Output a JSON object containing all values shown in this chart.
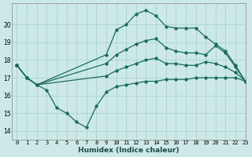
{
  "xlabel": "Humidex (Indice chaleur)",
  "xlim": [
    -0.5,
    23
  ],
  "ylim": [
    13.5,
    21.2
  ],
  "yticks": [
    14,
    15,
    16,
    17,
    18,
    19,
    20
  ],
  "xticks": [
    0,
    1,
    2,
    3,
    4,
    5,
    6,
    7,
    8,
    9,
    10,
    11,
    12,
    13,
    14,
    15,
    16,
    17,
    18,
    19,
    20,
    21,
    22,
    23
  ],
  "bg_color": "#cce9e7",
  "line_color": "#1a6b60",
  "grid_color": "#a8d5d0",
  "series1_x": [
    0,
    1,
    2,
    3,
    4,
    5,
    6,
    7,
    8,
    9,
    10,
    11,
    12,
    13,
    14,
    15,
    16,
    17,
    18,
    19,
    20,
    21,
    22,
    23
  ],
  "series1_y": [
    17.7,
    17.0,
    16.6,
    16.3,
    15.3,
    15.0,
    14.5,
    14.2,
    15.4,
    16.2,
    16.5,
    16.6,
    16.7,
    16.8,
    16.8,
    16.9,
    16.9,
    16.9,
    17.0,
    17.0,
    17.0,
    17.0,
    17.0,
    16.8
  ],
  "series2_x": [
    0,
    1,
    2,
    9,
    10,
    11,
    12,
    13,
    14,
    15,
    16,
    17,
    18,
    19,
    20,
    21,
    22,
    23
  ],
  "series2_y": [
    17.7,
    17.0,
    16.6,
    18.3,
    19.7,
    20.0,
    20.6,
    20.8,
    20.5,
    19.9,
    19.8,
    19.8,
    19.8,
    19.3,
    18.9,
    18.5,
    17.7,
    16.8
  ],
  "series3_x": [
    0,
    1,
    2,
    9,
    10,
    11,
    12,
    13,
    14,
    15,
    16,
    17,
    18,
    19,
    20,
    21,
    22,
    23
  ],
  "series3_y": [
    17.7,
    17.0,
    16.6,
    17.8,
    18.3,
    18.6,
    18.9,
    19.1,
    19.2,
    18.7,
    18.5,
    18.4,
    18.4,
    18.3,
    18.8,
    18.4,
    17.6,
    16.8
  ],
  "series4_x": [
    0,
    1,
    2,
    9,
    10,
    11,
    12,
    13,
    14,
    15,
    16,
    17,
    18,
    19,
    20,
    21,
    22,
    23
  ],
  "series4_y": [
    17.7,
    17.0,
    16.6,
    17.1,
    17.4,
    17.6,
    17.8,
    18.0,
    18.1,
    17.8,
    17.8,
    17.7,
    17.7,
    17.9,
    17.8,
    17.6,
    17.3,
    16.8
  ]
}
